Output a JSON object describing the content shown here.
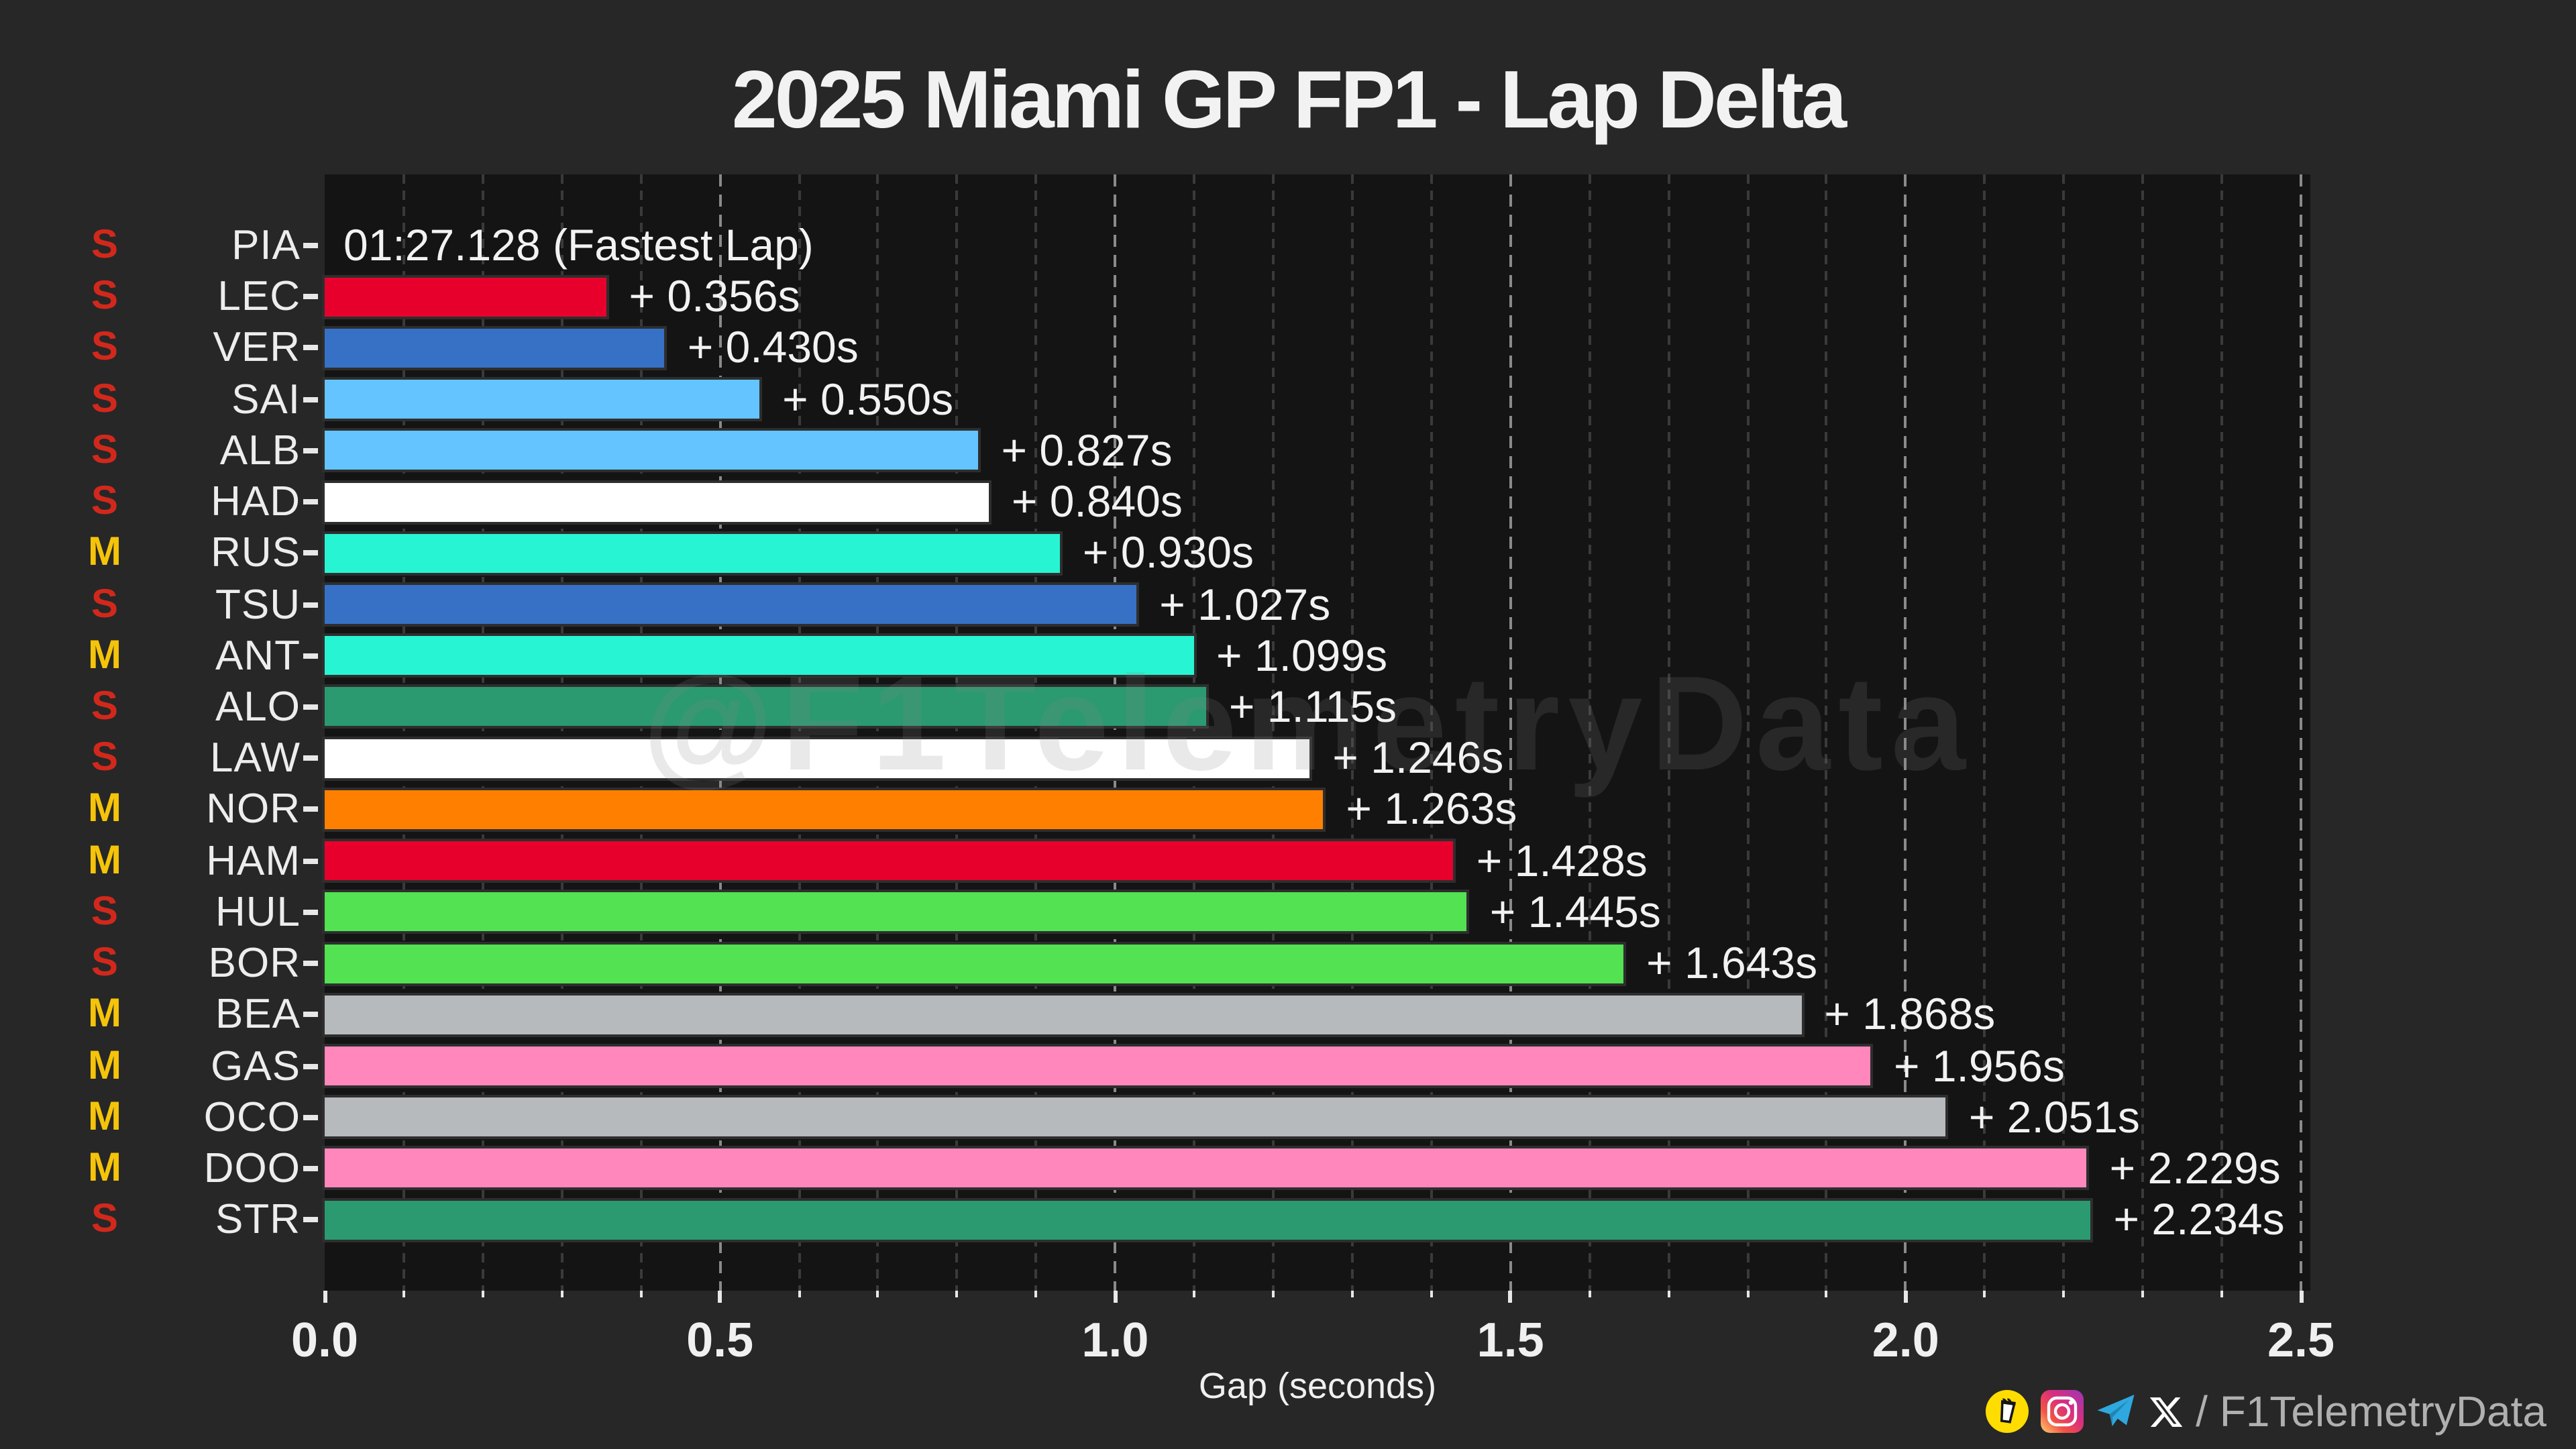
{
  "title": "2025 Miami GP FP1 - Lap Delta",
  "watermark": "@F1TelemetryData",
  "xlabel": "Gap (seconds)",
  "tyre_colors": {
    "S": "#D2281C",
    "M": "#F5C40A"
  },
  "footer": {
    "icons": [
      "buymeacoffee-icon",
      "instagram-icon",
      "telegram-icon",
      "x-icon"
    ],
    "handle": "/ F1TelemetryData"
  },
  "chart_data": {
    "type": "bar",
    "orientation": "horizontal",
    "title": "2025 Miami GP FP1 - Lap Delta",
    "xlabel": "Gap (seconds)",
    "xlim": [
      0,
      2.51
    ],
    "x_ticks": [
      0.0,
      0.5,
      1.0,
      1.5,
      2.0,
      2.5
    ],
    "x_tick_labels": [
      "0.0",
      "0.5",
      "1.0",
      "1.5",
      "2.0",
      "2.5"
    ],
    "minor_tick_step": 0.1,
    "grid": "dashed-vertical",
    "fastest_lap": {
      "driver": "PIA",
      "time_label": "01:27.128 (Fastest Lap)"
    },
    "bars": [
      {
        "code": "PIA",
        "tyre": "S",
        "delta": 0.0,
        "label": "01:27.128 (Fastest Lap)",
        "color": "#FF8000"
      },
      {
        "code": "LEC",
        "tyre": "S",
        "delta": 0.356,
        "label": "+ 0.356s",
        "color": "#E8002D"
      },
      {
        "code": "VER",
        "tyre": "S",
        "delta": 0.43,
        "label": "+ 0.430s",
        "color": "#3671C6"
      },
      {
        "code": "SAI",
        "tyre": "S",
        "delta": 0.55,
        "label": "+ 0.550s",
        "color": "#64C4FF"
      },
      {
        "code": "ALB",
        "tyre": "S",
        "delta": 0.827,
        "label": "+ 0.827s",
        "color": "#64C4FF"
      },
      {
        "code": "HAD",
        "tyre": "S",
        "delta": 0.84,
        "label": "+ 0.840s",
        "color": "#FFFFFF"
      },
      {
        "code": "RUS",
        "tyre": "M",
        "delta": 0.93,
        "label": "+ 0.930s",
        "color": "#27F4D2"
      },
      {
        "code": "TSU",
        "tyre": "S",
        "delta": 1.027,
        "label": "+ 1.027s",
        "color": "#3671C6"
      },
      {
        "code": "ANT",
        "tyre": "M",
        "delta": 1.099,
        "label": "+ 1.099s",
        "color": "#27F4D2"
      },
      {
        "code": "ALO",
        "tyre": "S",
        "delta": 1.115,
        "label": "+ 1.115s",
        "color": "#2B9A71"
      },
      {
        "code": "LAW",
        "tyre": "S",
        "delta": 1.246,
        "label": "+ 1.246s",
        "color": "#FFFFFF"
      },
      {
        "code": "NOR",
        "tyre": "M",
        "delta": 1.263,
        "label": "+ 1.263s",
        "color": "#FF8000"
      },
      {
        "code": "HAM",
        "tyre": "M",
        "delta": 1.428,
        "label": "+ 1.428s",
        "color": "#E8002D"
      },
      {
        "code": "HUL",
        "tyre": "S",
        "delta": 1.445,
        "label": "+ 1.445s",
        "color": "#52E252"
      },
      {
        "code": "BOR",
        "tyre": "S",
        "delta": 1.643,
        "label": "+ 1.643s",
        "color": "#52E252"
      },
      {
        "code": "BEA",
        "tyre": "M",
        "delta": 1.868,
        "label": "+ 1.868s",
        "color": "#B6BABD"
      },
      {
        "code": "GAS",
        "tyre": "M",
        "delta": 1.956,
        "label": "+ 1.956s",
        "color": "#FF87BC"
      },
      {
        "code": "OCO",
        "tyre": "M",
        "delta": 2.051,
        "label": "+ 2.051s",
        "color": "#B6BABD"
      },
      {
        "code": "DOO",
        "tyre": "M",
        "delta": 2.229,
        "label": "+ 2.229s",
        "color": "#FF87BC"
      },
      {
        "code": "STR",
        "tyre": "S",
        "delta": 2.234,
        "label": "+ 2.234s",
        "color": "#2B9A71"
      }
    ]
  }
}
